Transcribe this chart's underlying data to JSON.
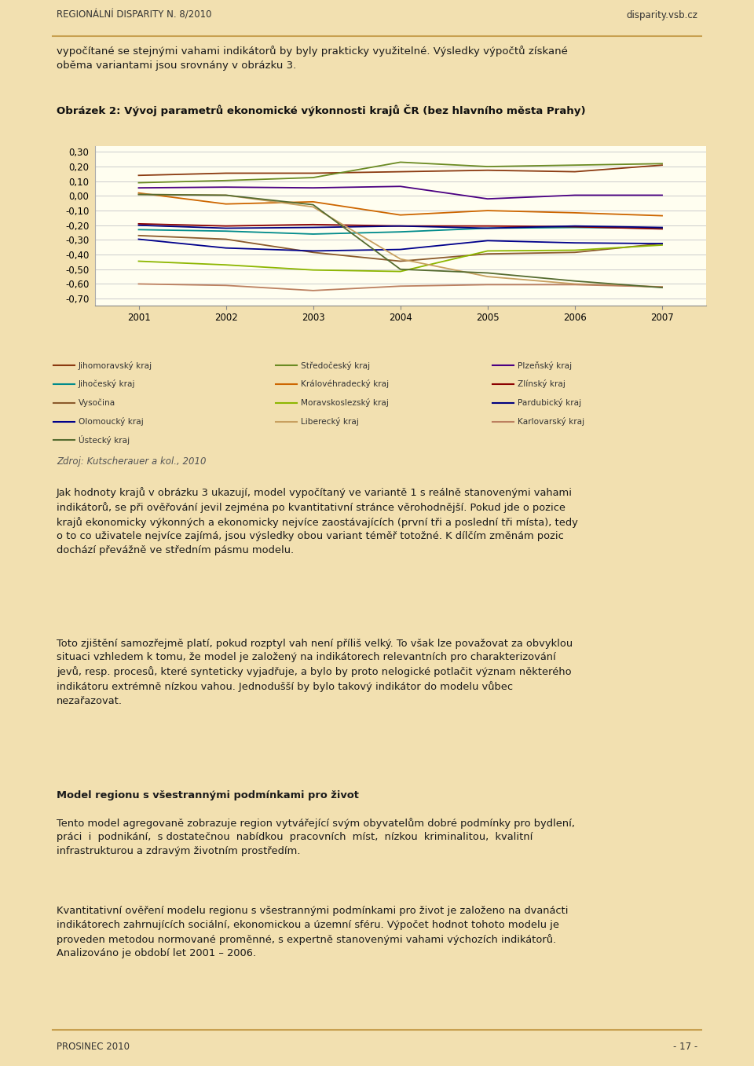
{
  "title": "Obrázek 2: Vývoj parametrů ekonomické výkonnosti krajů ČR (bez hlavního města Prahy)",
  "years": [
    2001,
    2002,
    2003,
    2004,
    2005,
    2006,
    2007
  ],
  "series": {
    "Jihomoravský kraj": [
      0.14,
      0.155,
      0.155,
      0.165,
      0.175,
      0.165,
      0.21
    ],
    "Středočeský kraj": [
      0.09,
      0.105,
      0.125,
      0.23,
      0.2,
      0.21,
      0.22
    ],
    "Plzeňský kraj": [
      0.055,
      0.06,
      0.055,
      0.065,
      -0.02,
      0.005,
      0.005
    ],
    "Jihočeský kraj": [
      -0.23,
      -0.24,
      -0.26,
      -0.245,
      -0.22,
      -0.215,
      -0.22
    ],
    "Královéhradecký kraj": [
      0.02,
      -0.055,
      -0.04,
      -0.13,
      -0.1,
      -0.115,
      -0.135
    ],
    "Zlínský kraj": [
      -0.19,
      -0.205,
      -0.195,
      -0.205,
      -0.205,
      -0.21,
      -0.225
    ],
    "Vysočina": [
      -0.27,
      -0.295,
      -0.385,
      -0.445,
      -0.395,
      -0.385,
      -0.325
    ],
    "Moravskoslezský kraj": [
      -0.445,
      -0.47,
      -0.505,
      -0.515,
      -0.375,
      -0.37,
      -0.335
    ],
    "Pardubický kraj": [
      -0.2,
      -0.22,
      -0.215,
      -0.205,
      -0.22,
      -0.205,
      -0.215
    ],
    "Olomoucký kraj": [
      -0.295,
      -0.355,
      -0.375,
      -0.365,
      -0.305,
      -0.32,
      -0.325
    ],
    "Liberecký kraj": [
      0.01,
      0.005,
      -0.075,
      -0.43,
      -0.55,
      -0.6,
      -0.62
    ],
    "Karlovarský kraj": [
      -0.6,
      -0.61,
      -0.645,
      -0.615,
      -0.605,
      -0.605,
      -0.62
    ],
    "Ústecký kraj": [
      0.01,
      0.005,
      -0.06,
      -0.5,
      -0.525,
      -0.58,
      -0.625
    ]
  },
  "colors": {
    "Jihomoravský kraj": "#8B3A10",
    "Středočeský kraj": "#6B8B23",
    "Plzeňský kraj": "#4B0082",
    "Jihočeský kraj": "#008B8B",
    "Královéhradecký kraj": "#CD6600",
    "Zlínský kraj": "#8B0000",
    "Vysočina": "#8B5A2B",
    "Moravskoslezský kraj": "#8DB600",
    "Pardubický kraj": "#000080",
    "Olomoucký kraj": "#00008B",
    "Liberecký kraj": "#C8A060",
    "Karlovarský kraj": "#BC8060",
    "Ústecký kraj": "#556B2F"
  },
  "header_left": "REGIONÁLNÍ DISPARITY N. 8/2010",
  "header_right": "disparity.vsb.cz",
  "footer_left": "PROSINEC 2010",
  "footer_right": "- 17 -",
  "source": "Zdroj: Kutscherauer a kol., 2010",
  "intro_text": "vypočítané se stejnými vahami indikátorů by byly prakticky využitelné. Výsledky výpočtů získané\noběma variantami jsou srovnány v obrázku 3.",
  "body_text_1": "Jak hodnoty krajů v obrázku 3 ukazují, model vypočítaný ve variantě 1 s reálně stanovenými vahami\nindikátorů, se při ověřování jevil zejména po kvantitativní stránce věrohodnější. Pokud jde o pozice\nkrajů ekonomicky výkonných a ekonomicky nejvíce zaostávajících (první tři a poslední tři místa), tedy\no to co uživatele nejvíce zajímá, jsou výsledky obou variant téměř totožné. K dílčím změnám pozic\ndochází převážně ve středním pásmu modelu.",
  "body_text_2": "Toto zjištění samozřejmě platí, pokud rozptyl vah není příliš velký. To však lze považovat za obvyklou\nsituaci vzhledem k tomu, že model je založený na indikátorech relevantních pro charakterizování\njevů, resp. procesů, které synteticky vyjadřuje, a bylo by proto nelogické potlačit význam některého\nindikátoru extrémně nízkou vahou. Jednodušší by bylo takový indikátor do modelu vůbec\nnezařazovat.",
  "body_bold": "Model regionu s všestrannými podmínkami pro život",
  "body_text_3": "Tento model agregovaně zobrazuje region vytvářející svým obyvatelům dobré podmínky pro bydlení,\npráci  i  podnikání,  s dostatečnou  nabídkou  pracovních  míst,  nízkou  kriminalitou,  kvalitní\ninfrastrukturou a zdravým životním prostředím.",
  "body_text_4": "Kvantitativní ověření modelu regionu s všestrannými podmínkami pro život je založeno na dvanácti\nindikátorech zahrnujících sociální, ekonomickou a územní sféru. Výpočet hodnot tohoto modelu je\nproveden metodou normované proměnné, s expertně stanovenými vahami výchozích indikátorů.\nAnalizováno je období let 2001 – 2006.",
  "col1_legend": [
    "Jihomoravský kraj",
    "Jihočeský kraj",
    "Vysočina",
    "Olomoucký kraj",
    "Ústecký kraj"
  ],
  "col2_legend": [
    "Středočeský kraj",
    "Královéhradecký kraj",
    "Moravskoslezský kraj",
    "Liberecký kraj"
  ],
  "col3_legend": [
    "Plzeňský kraj",
    "Zlínský kraj",
    "Pardubický kraj",
    "Karlovarský kraj"
  ],
  "page_bg": "#F2E0B0",
  "chart_outer_bg": "#C5DCE8",
  "chart_inner_bg": "#FFFEF0",
  "legend_bg": "#FFFEF0",
  "yticks": [
    -0.7,
    -0.6,
    -0.5,
    -0.4,
    -0.3,
    -0.2,
    -0.1,
    0.0,
    0.1,
    0.2,
    0.3
  ],
  "ylim": [
    -0.75,
    0.34
  ],
  "xlim": [
    2000.5,
    2007.5
  ]
}
